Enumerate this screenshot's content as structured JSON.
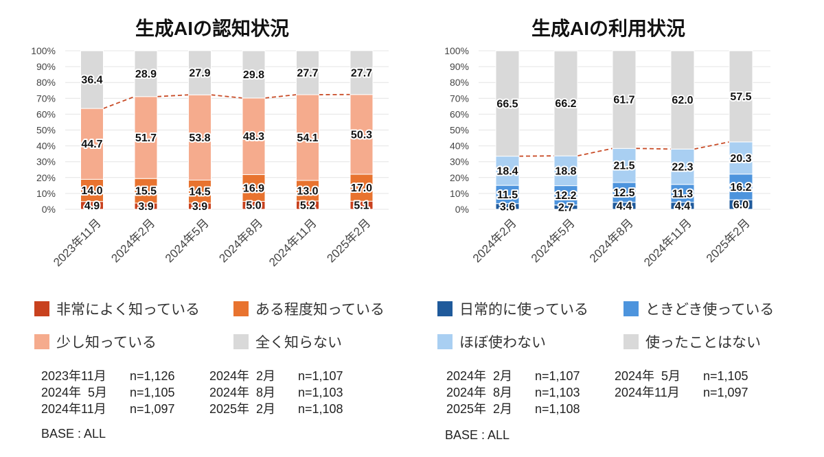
{
  "chart_data": [
    {
      "type": "bar",
      "stacked": true,
      "title": "生成AIの認知状況",
      "categories": [
        "2023年11月",
        "2024年2月",
        "2024年5月",
        "2024年8月",
        "2024年11月",
        "2025年2月"
      ],
      "series": [
        {
          "name": "非常によく知っている",
          "color": "#c8411e",
          "values": [
            4.9,
            3.9,
            3.9,
            5.0,
            5.2,
            5.1
          ]
        },
        {
          "name": "ある程度知っている",
          "color": "#e8732f",
          "values": [
            14.0,
            15.5,
            14.5,
            16.9,
            13.0,
            17.0
          ]
        },
        {
          "name": "少し知っている",
          "color": "#f5ab8d",
          "values": [
            44.7,
            51.7,
            53.8,
            48.3,
            54.1,
            50.3
          ]
        },
        {
          "name": "全く知らない",
          "color": "#d9d9d9",
          "values": [
            36.4,
            28.9,
            27.9,
            29.8,
            27.7,
            27.7
          ]
        }
      ],
      "ylim": [
        0,
        100
      ],
      "yticks": [
        "0%",
        "10%",
        "20%",
        "30%",
        "40%",
        "50%",
        "60%",
        "70%",
        "80%",
        "90%",
        "100%"
      ],
      "grid": true,
      "legend": "bottom",
      "trend_line_color": "#c84a25"
    },
    {
      "type": "bar",
      "stacked": true,
      "title": "生成AIの利用状況",
      "categories": [
        "2024年2月",
        "2024年5月",
        "2024年8月",
        "2024年11月",
        "2025年2月"
      ],
      "series": [
        {
          "name": "日常的に使っている",
          "color": "#1f5a9b",
          "values": [
            3.6,
            2.7,
            4.4,
            4.4,
            6.0
          ]
        },
        {
          "name": "ときどき使っている",
          "color": "#4d94dd",
          "values": [
            11.5,
            12.2,
            12.5,
            11.3,
            16.2
          ]
        },
        {
          "name": "ほぼ使わない",
          "color": "#a9cff2",
          "values": [
            18.4,
            18.8,
            21.5,
            22.3,
            20.3
          ]
        },
        {
          "name": "使ったことはない",
          "color": "#d9d9d9",
          "values": [
            66.5,
            66.2,
            61.7,
            62.0,
            57.5
          ]
        }
      ],
      "ylim": [
        0,
        100
      ],
      "yticks": [
        "0%",
        "10%",
        "20%",
        "30%",
        "40%",
        "50%",
        "60%",
        "70%",
        "80%",
        "90%",
        "100%"
      ],
      "grid": true,
      "legend": "bottom",
      "trend_line_color": "#c84a25"
    }
  ],
  "samples": [
    {
      "rows": [
        {
          "period": "2023年11月",
          "n": "n=1,126"
        },
        {
          "period": "2024年  2月",
          "n": "n=1,107"
        },
        {
          "period": "2024年  5月",
          "n": "n=1,105"
        },
        {
          "period": "2024年  8月",
          "n": "n=1,103"
        },
        {
          "period": "2024年11月",
          "n": "n=1,097"
        },
        {
          "period": "2025年  2月",
          "n": "n=1,108"
        }
      ],
      "base": "BASE : ALL"
    },
    {
      "rows": [
        {
          "period": "2024年  2月",
          "n": "n=1,107"
        },
        {
          "period": "2024年  5月",
          "n": "n=1,105"
        },
        {
          "period": "2024年  8月",
          "n": "n=1,103"
        },
        {
          "period": "2024年11月",
          "n": "n=1,097"
        },
        {
          "period": "2025年  2月",
          "n": "n=1,108"
        }
      ],
      "base": "BASE : ALL"
    }
  ]
}
